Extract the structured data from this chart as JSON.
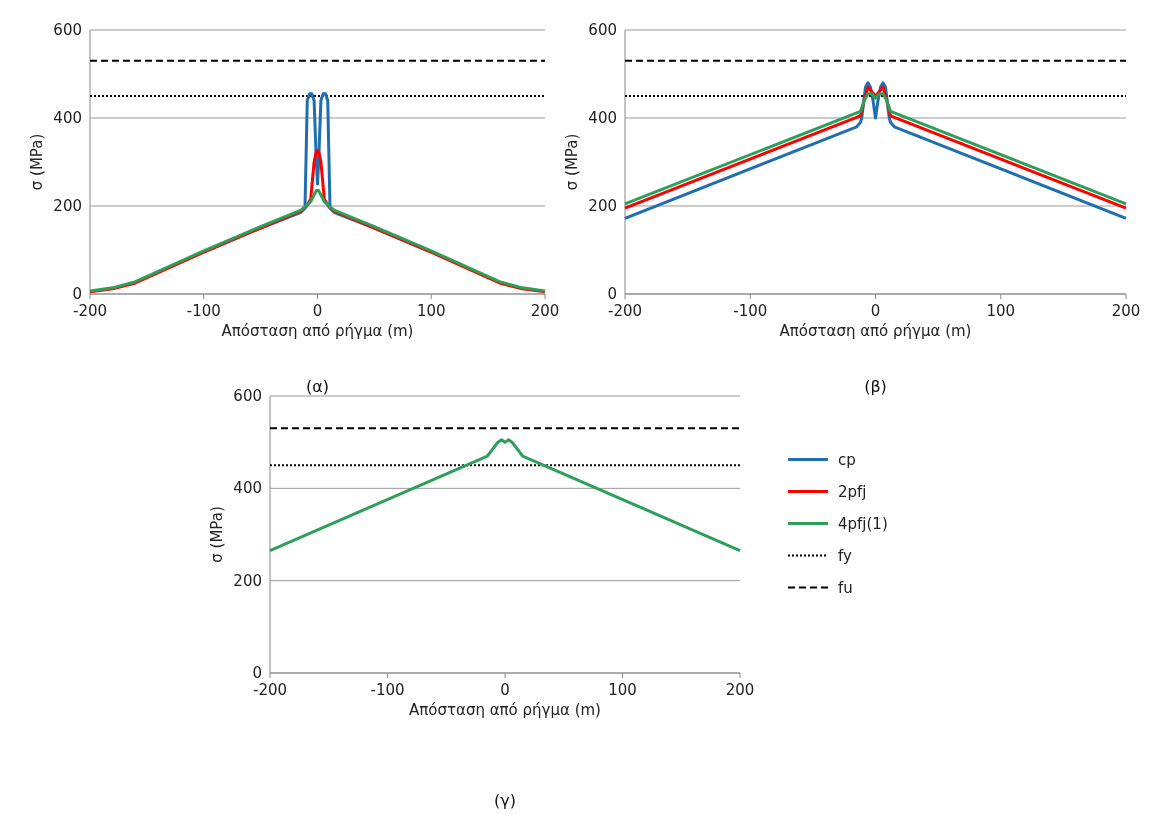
{
  "chart_data": [
    {
      "type": "line",
      "title": "(α)",
      "xlabel": "Απόσταση από ρήγμα (m)",
      "ylabel": "σ (MPa)",
      "xlim": [
        -200,
        200
      ],
      "xticks": [
        -200,
        -100,
        0,
        100,
        200
      ],
      "ylim": [
        0,
        600
      ],
      "yticks": [
        0,
        200,
        400,
        600
      ],
      "grid": "y",
      "line_style": "solid",
      "series": [
        {
          "color": "#1f6fb0",
          "x": [
            -100,
            -50,
            -15,
            -11,
            -9,
            -7,
            -5,
            -3,
            -1,
            0,
            1,
            3,
            5,
            7,
            9,
            11,
            15,
            50,
            100
          ],
          "values": [
            95,
            150,
            185,
            195,
            440,
            455,
            455,
            440,
            300,
            250,
            300,
            440,
            455,
            455,
            440,
            195,
            185,
            150,
            95
          ]
        },
        {
          "color": "#ff0000",
          "x": [
            -200,
            -180,
            -160,
            -100,
            -50,
            -15,
            -10,
            -6,
            -3,
            -1,
            1,
            3,
            6,
            10,
            15,
            50,
            100,
            160,
            180,
            200
          ],
          "values": [
            5,
            12,
            25,
            95,
            150,
            188,
            198,
            215,
            300,
            325,
            325,
            300,
            215,
            198,
            188,
            150,
            95,
            25,
            12,
            5
          ]
        },
        {
          "color": "#2ca05a",
          "x": [
            -200,
            -180,
            -160,
            -100,
            -50,
            -15,
            -10,
            -6,
            -3,
            -1,
            1,
            3,
            6,
            10,
            15,
            50,
            100,
            160,
            180,
            200
          ],
          "values": [
            7,
            14,
            28,
            98,
            153,
            190,
            200,
            210,
            225,
            235,
            235,
            225,
            210,
            200,
            190,
            153,
            98,
            28,
            14,
            7
          ]
        }
      ],
      "ref_lines": [
        {
          "axis": "y",
          "value": 450,
          "color": "#000000",
          "line_style": "dotted"
        },
        {
          "axis": "y",
          "value": 530,
          "color": "#000000",
          "line_style": "dashed"
        }
      ]
    },
    {
      "type": "line",
      "title": "(β)",
      "xlabel": "Απόσταση από ρήγμα (m)",
      "ylabel": "σ (MPa)",
      "xlim": [
        -200,
        200
      ],
      "xticks": [
        -200,
        -100,
        0,
        100,
        200
      ],
      "ylim": [
        0,
        600
      ],
      "yticks": [
        0,
        200,
        400,
        600
      ],
      "grid": "y",
      "line_style": "solid",
      "series": [
        {
          "color": "#1f6fb0",
          "x": [
            -200,
            -15,
            -12,
            -11,
            -8,
            -6,
            -4,
            -2,
            0,
            2,
            4,
            6,
            8,
            11,
            12,
            15,
            200
          ],
          "values": [
            172,
            380,
            390,
            400,
            470,
            480,
            470,
            440,
            400,
            440,
            470,
            480,
            470,
            400,
            390,
            380,
            172
          ]
        },
        {
          "color": "#ff0000",
          "x": [
            -200,
            -12,
            -9,
            -6,
            -3,
            0,
            3,
            6,
            9,
            12,
            200
          ],
          "values": [
            195,
            405,
            440,
            470,
            460,
            450,
            460,
            470,
            440,
            405,
            195
          ]
        },
        {
          "color": "#2ca05a",
          "x": [
            -200,
            -12,
            -9,
            -6,
            -3,
            0,
            3,
            6,
            9,
            12,
            200
          ],
          "values": [
            205,
            415,
            440,
            455,
            455,
            445,
            455,
            455,
            440,
            415,
            205
          ]
        }
      ],
      "ref_lines": [
        {
          "axis": "y",
          "value": 450,
          "color": "#000000",
          "line_style": "dotted"
        },
        {
          "axis": "y",
          "value": 530,
          "color": "#000000",
          "line_style": "dashed"
        }
      ]
    },
    {
      "type": "line",
      "title": "(γ)",
      "xlabel": "Απόσταση από ρήγμα (m)",
      "ylabel": "σ (MPa)",
      "xlim": [
        -200,
        200
      ],
      "xticks": [
        -200,
        -100,
        0,
        100,
        200
      ],
      "ylim": [
        0,
        600
      ],
      "yticks": [
        0,
        200,
        400,
        600
      ],
      "grid": "y",
      "line_style": "solid",
      "legend": "right",
      "series": [
        {
          "name": "cp",
          "color": "#1f6fb0"
        },
        {
          "name": "2pfj",
          "color": "#ff0000"
        },
        {
          "name": "4pfj(1)",
          "color": "#2ca05a",
          "x": [
            -200,
            -15,
            -12,
            -9,
            -6,
            -3,
            0,
            3,
            6,
            9,
            12,
            15,
            200
          ],
          "values": [
            265,
            470,
            480,
            490,
            500,
            505,
            500,
            505,
            500,
            490,
            480,
            470,
            265
          ]
        }
      ],
      "ref_lines": [
        {
          "axis": "y",
          "value": 450,
          "label": "fy",
          "color": "#000000",
          "line_style": "dotted"
        },
        {
          "axis": "y",
          "value": 530,
          "label": "fu",
          "color": "#000000",
          "line_style": "dashed"
        }
      ]
    }
  ]
}
